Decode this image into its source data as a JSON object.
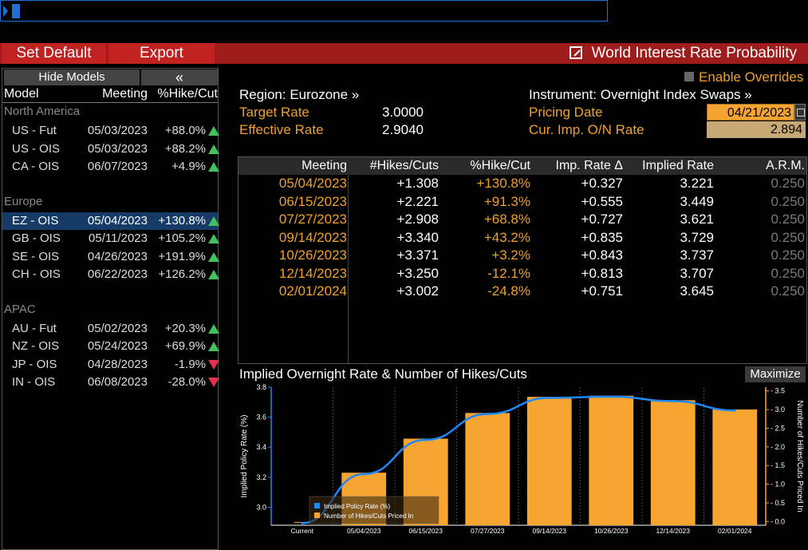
{
  "toolbar": {
    "set_default_label": "Set Default",
    "export_label": "Export",
    "title": "World Interest Rate Probability"
  },
  "models_panel": {
    "hide_label": "Hide Models",
    "collapse_label": "«",
    "columns": {
      "model": "Model",
      "meeting": "Meeting",
      "pct": "%Hike/Cut"
    },
    "groups": [
      {
        "name": "North America",
        "rows": [
          {
            "model": "US - Fut",
            "meeting": "05/03/2023",
            "pct": "+88.0%",
            "dir": "up"
          },
          {
            "model": "US - OIS",
            "meeting": "05/03/2023",
            "pct": "+88.2%",
            "dir": "up"
          },
          {
            "model": "CA - OIS",
            "meeting": "06/07/2023",
            "pct": "+4.9%",
            "dir": "up"
          }
        ]
      },
      {
        "name": "Europe",
        "rows": [
          {
            "model": "EZ - OIS",
            "meeting": "05/04/2023",
            "pct": "+130.8%",
            "dir": "up",
            "selected": true
          },
          {
            "model": "GB - OIS",
            "meeting": "05/11/2023",
            "pct": "+105.2%",
            "dir": "up"
          },
          {
            "model": "SE - OIS",
            "meeting": "04/26/2023",
            "pct": "+191.9%",
            "dir": "up"
          },
          {
            "model": "CH - OIS",
            "meeting": "06/22/2023",
            "pct": "+126.2%",
            "dir": "up"
          }
        ]
      },
      {
        "name": "APAC",
        "rows": [
          {
            "model": "AU - Fut",
            "meeting": "05/02/2023",
            "pct": "+20.3%",
            "dir": "up"
          },
          {
            "model": "NZ - OIS",
            "meeting": "05/24/2023",
            "pct": "+69.9%",
            "dir": "up"
          },
          {
            "model": "JP - OIS",
            "meeting": "04/28/2023",
            "pct": "-1.9%",
            "dir": "down"
          },
          {
            "model": "IN - OIS",
            "meeting": "06/08/2023",
            "pct": "-28.0%",
            "dir": "down"
          }
        ]
      }
    ]
  },
  "info": {
    "region": "Region: Eurozone »",
    "instrument": "Instrument: Overnight Index Swaps »",
    "enable_overrides": "Enable Overrides",
    "target_rate_label": "Target Rate",
    "target_rate": "3.0000",
    "effective_rate_label": "Effective Rate",
    "effective_rate": "2.9040",
    "pricing_date_label": "Pricing Date",
    "pricing_date": "04/21/2023",
    "on_rate_label": "Cur. Imp. O/N Rate",
    "on_rate": "2.894"
  },
  "table": {
    "headers": [
      "Meeting",
      "#Hikes/Cuts",
      "%Hike/Cut",
      "Imp. Rate Δ",
      "Implied Rate",
      "A.R.M."
    ],
    "rows": [
      [
        "05/04/2023",
        "+1.308",
        "+130.8%",
        "+0.327",
        "3.221",
        "0.250"
      ],
      [
        "06/15/2023",
        "+2.221",
        "+91.3%",
        "+0.555",
        "3.449",
        "0.250"
      ],
      [
        "07/27/2023",
        "+2.908",
        "+68.8%",
        "+0.727",
        "3.621",
        "0.250"
      ],
      [
        "09/14/2023",
        "+3.340",
        "+43.2%",
        "+0.835",
        "3.729",
        "0.250"
      ],
      [
        "10/26/2023",
        "+3.371",
        "+3.2%",
        "+0.843",
        "3.737",
        "0.250"
      ],
      [
        "12/14/2023",
        "+3.250",
        "-12.1%",
        "+0.813",
        "3.707",
        "0.250"
      ],
      [
        "02/01/2024",
        "+3.002",
        "-24.8%",
        "+0.751",
        "3.645",
        "0.250"
      ]
    ]
  },
  "chart": {
    "title": "Implied Overnight Rate & Number of Hikes/Cuts",
    "maximize_label": "Maximize"
  },
  "chart_data": {
    "type": "bar",
    "categories": [
      "Current",
      "05/04/2023",
      "06/15/2023",
      "07/27/2023",
      "09/14/2023",
      "10/26/2023",
      "12/14/2023",
      "02/01/2024"
    ],
    "series": [
      {
        "name": "Implied Policy Rate (%)",
        "type": "line",
        "axis": "left",
        "color": "#1e88ff",
        "values": [
          2.894,
          3.221,
          3.449,
          3.621,
          3.729,
          3.737,
          3.707,
          3.645
        ]
      },
      {
        "name": "Number of Hikes/Cuts Priced In",
        "type": "bar",
        "axis": "right",
        "color": "#f7a530",
        "values": [
          0,
          1.308,
          2.221,
          2.908,
          3.34,
          3.371,
          3.25,
          3.002
        ]
      }
    ],
    "ylabel_left": "Implied Policy Rate (%)",
    "ylabel_right": "Number of Hikes/Cuts Priced In",
    "ylim_left": [
      2.88,
      3.8
    ],
    "ylim_right": [
      -0.1,
      3.6
    ],
    "yticks_left": [
      "3.8",
      "3.6",
      "3.4",
      "3.2",
      "3.0"
    ],
    "yticks_right": [
      "3.5",
      "3.0",
      "2.5",
      "2.0",
      "1.5",
      "1.0",
      "0.5",
      "0.0"
    ],
    "legend": "bottom-left",
    "grid": true
  }
}
